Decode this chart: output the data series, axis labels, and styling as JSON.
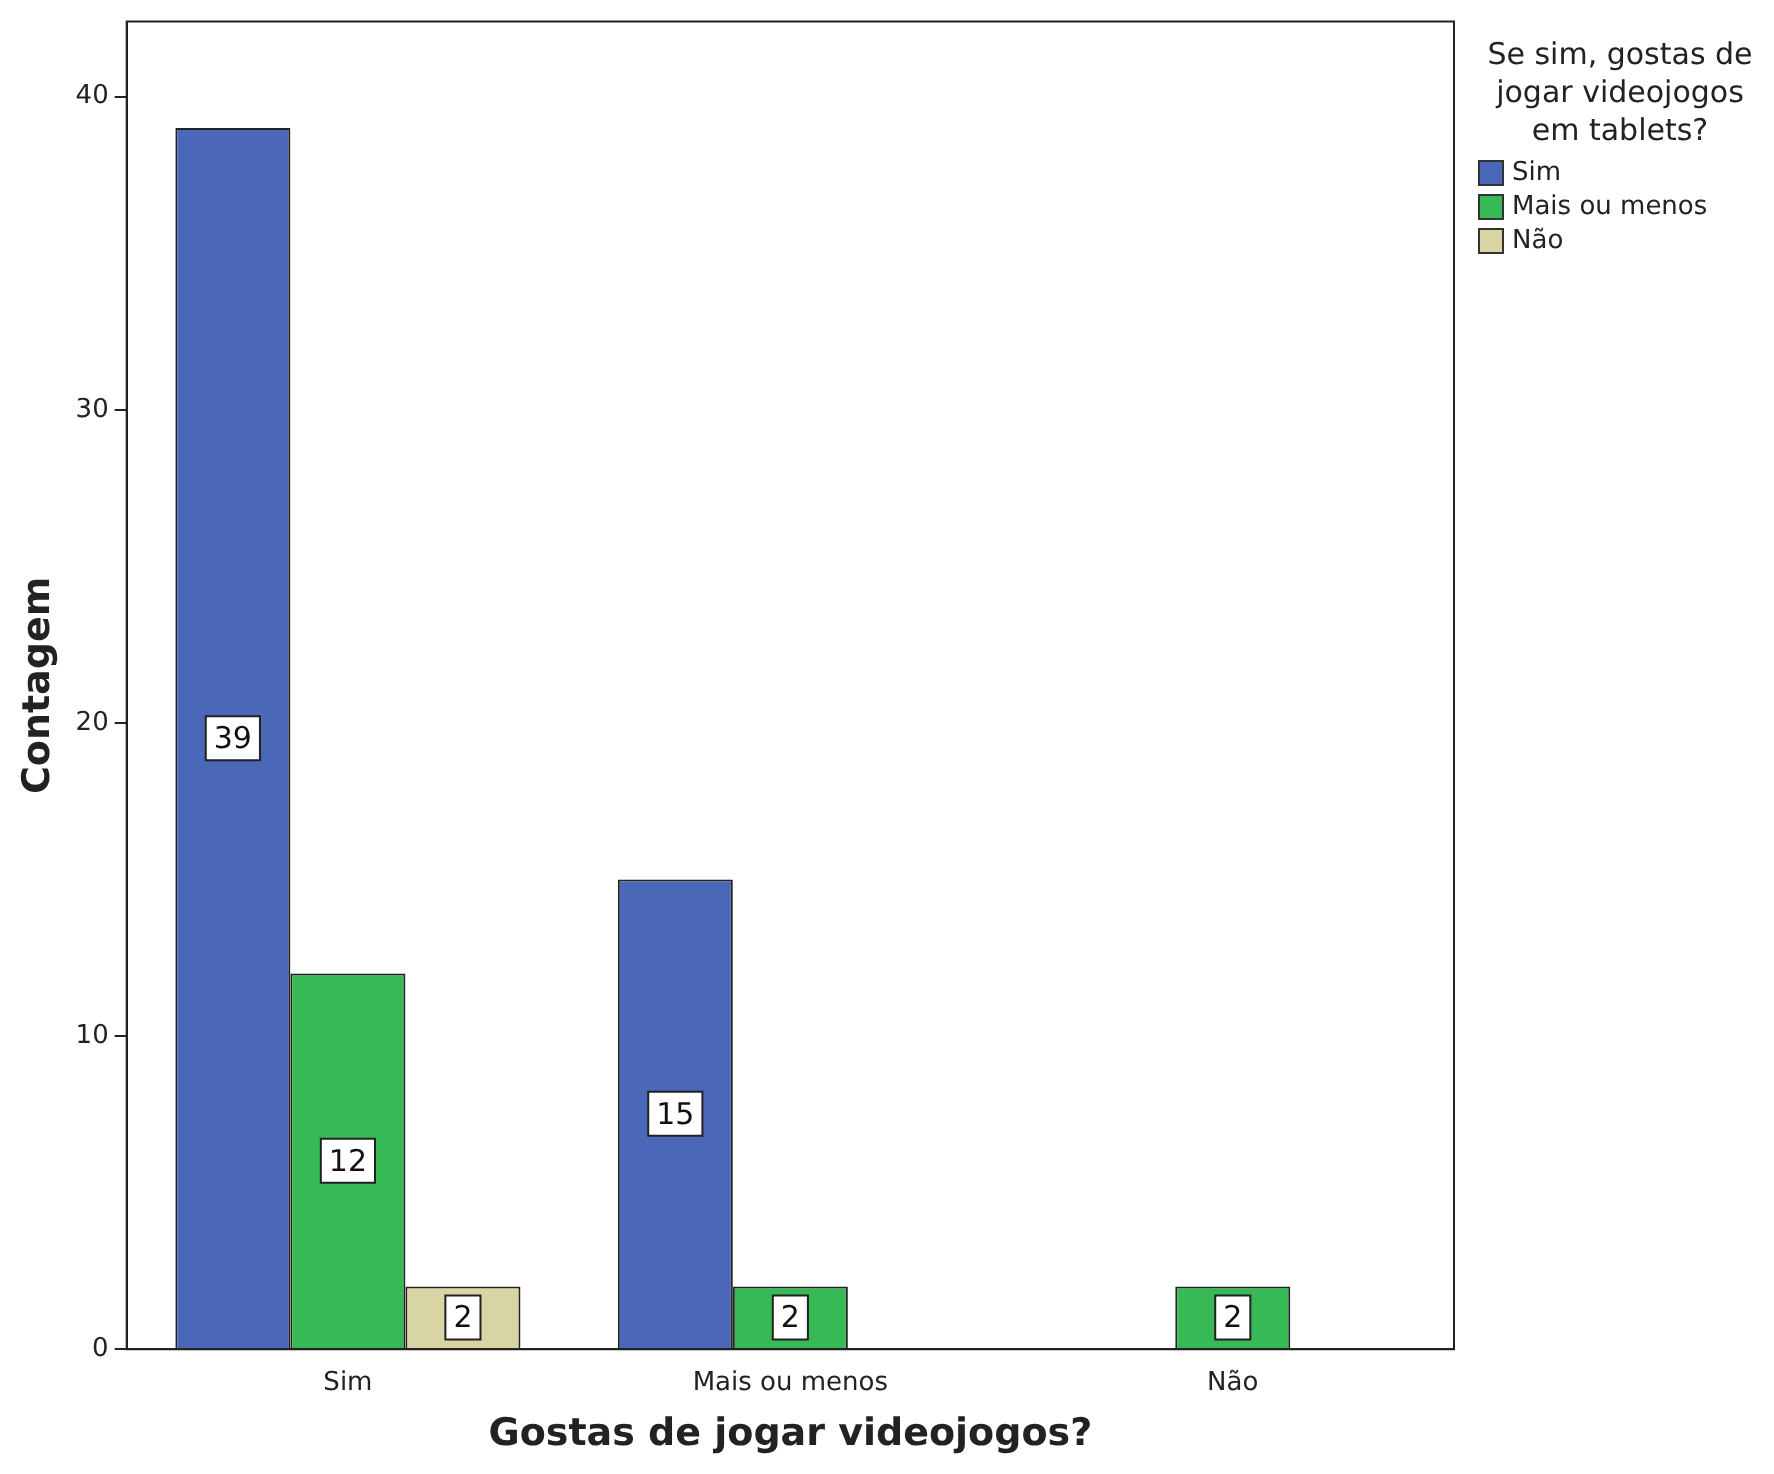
{
  "chart_data": {
    "type": "bar",
    "xlabel": "Gostas de jogar videojogos?",
    "ylabel": "Contagem",
    "legend_title": "Se sim, gostas de jogar videojogos em tablets?",
    "legend": "top right",
    "data_labels": true,
    "grid": false,
    "categories": [
      "Sim",
      "Mais ou menos",
      "Não"
    ],
    "ylim": [
      0,
      42.4
    ],
    "yticks": [
      0,
      10,
      20,
      30,
      40
    ],
    "series": [
      {
        "name": "Sim",
        "color": "#4a67b8",
        "values": [
          39,
          15,
          null
        ]
      },
      {
        "name": "Mais ou menos",
        "color": "#37b955",
        "values": [
          12,
          2,
          2
        ]
      },
      {
        "name": "Não",
        "color": "#d9d4a4",
        "values": [
          2,
          null,
          null
        ]
      }
    ]
  }
}
